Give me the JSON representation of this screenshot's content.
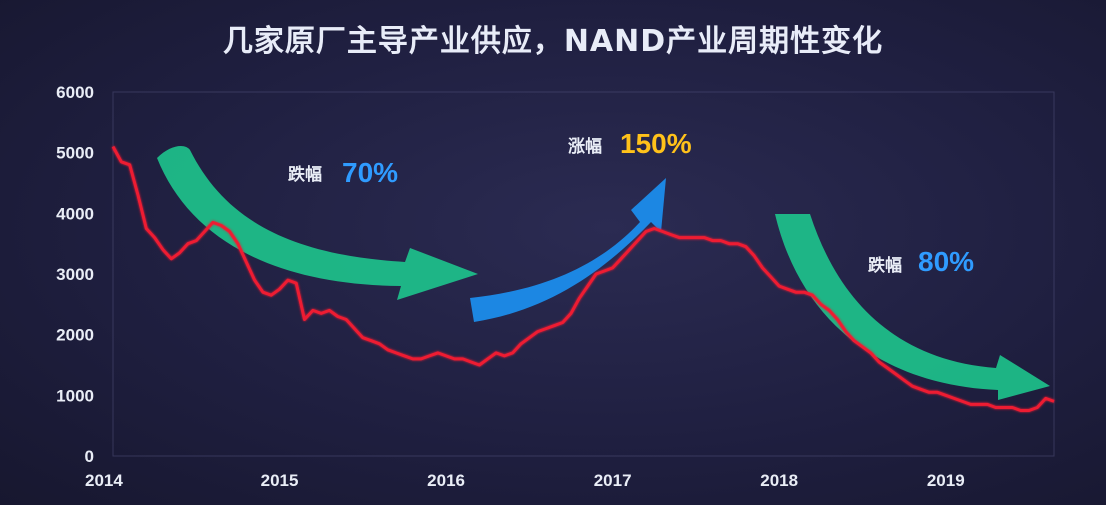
{
  "title": "几家原厂主导产业供应，NAND产业周期性变化",
  "colors": {
    "line": "#ee1b33",
    "arrow_green": "#1ec98e",
    "arrow_blue": "#1b8ff0",
    "pct_blue": "#2f9bff",
    "pct_yellow": "#ffc21a"
  },
  "annotations": [
    {
      "label": "跌幅",
      "value": "70%",
      "color": "#2f9bff"
    },
    {
      "label": "涨幅",
      "value": "150%",
      "color": "#ffc21a"
    },
    {
      "label": "跌幅",
      "value": "80%",
      "color": "#2f9bff"
    }
  ],
  "chart_data": {
    "type": "line",
    "title": "几家原厂主导产业供应，NAND产业周期性变化",
    "xlim": [
      2014.0,
      2019.65
    ],
    "ylim": [
      0,
      6000
    ],
    "x_ticks": [
      "2014",
      "2015",
      "2016",
      "2017",
      "2018",
      "2019"
    ],
    "y_ticks": [
      "0",
      "1000",
      "2000",
      "3000",
      "4000",
      "5000",
      "6000"
    ],
    "grid": false,
    "series": [
      {
        "x": [
          2014.0,
          2014.05,
          2014.1,
          2014.15,
          2014.2,
          2014.25,
          2014.3,
          2014.35,
          2014.4,
          2014.45,
          2014.5,
          2014.55,
          2014.6,
          2014.65,
          2014.7,
          2014.75,
          2014.8,
          2014.85,
          2014.9,
          2014.95,
          2015.0,
          2015.05,
          2015.1,
          2015.15,
          2015.2,
          2015.25,
          2015.3,
          2015.35,
          2015.4,
          2015.45,
          2015.5,
          2015.55,
          2015.6,
          2015.65,
          2015.7,
          2015.75,
          2015.8,
          2015.85,
          2015.9,
          2015.95,
          2016.0,
          2016.05,
          2016.1,
          2016.15,
          2016.2,
          2016.25,
          2016.3,
          2016.35,
          2016.4,
          2016.45,
          2016.5,
          2016.55,
          2016.6,
          2016.65,
          2016.7,
          2016.75,
          2016.8,
          2016.85,
          2016.9,
          2016.95,
          2017.0,
          2017.05,
          2017.1,
          2017.15,
          2017.2,
          2017.25,
          2017.3,
          2017.35,
          2017.4,
          2017.45,
          2017.5,
          2017.55,
          2017.6,
          2017.65,
          2017.7,
          2017.75,
          2017.8,
          2017.85,
          2017.9,
          2017.95,
          2018.0,
          2018.05,
          2018.1,
          2018.15,
          2018.2,
          2018.25,
          2018.3,
          2018.35,
          2018.4,
          2018.45,
          2018.5,
          2018.55,
          2018.6,
          2018.65,
          2018.7,
          2018.75,
          2018.8,
          2018.85,
          2018.9,
          2018.95,
          2019.0,
          2019.05,
          2019.1,
          2019.15,
          2019.2,
          2019.25,
          2019.3,
          2019.35,
          2019.4,
          2019.45,
          2019.5,
          2019.55,
          2019.6,
          2019.65
        ],
        "values": [
          5100,
          4850,
          4800,
          4300,
          3750,
          3600,
          3400,
          3250,
          3350,
          3500,
          3550,
          3700,
          3850,
          3800,
          3700,
          3500,
          3200,
          2900,
          2700,
          2650,
          2750,
          2900,
          2850,
          2250,
          2400,
          2350,
          2400,
          2300,
          2250,
          2100,
          1950,
          1900,
          1850,
          1750,
          1700,
          1650,
          1600,
          1600,
          1650,
          1700,
          1650,
          1600,
          1600,
          1550,
          1500,
          1600,
          1700,
          1650,
          1700,
          1850,
          1950,
          2050,
          2100,
          2150,
          2200,
          2350,
          2600,
          2800,
          3000,
          3050,
          3100,
          3250,
          3400,
          3550,
          3700,
          3750,
          3700,
          3650,
          3600,
          3600,
          3600,
          3600,
          3550,
          3550,
          3500,
          3500,
          3450,
          3300,
          3100,
          2950,
          2800,
          2750,
          2700,
          2700,
          2650,
          2500,
          2400,
          2250,
          2050,
          1900,
          1800,
          1700,
          1550,
          1450,
          1350,
          1250,
          1150,
          1100,
          1050,
          1050,
          1000,
          950,
          900,
          850,
          850,
          850,
          800,
          800,
          800,
          750,
          750,
          800,
          950,
          900
        ]
      }
    ]
  }
}
